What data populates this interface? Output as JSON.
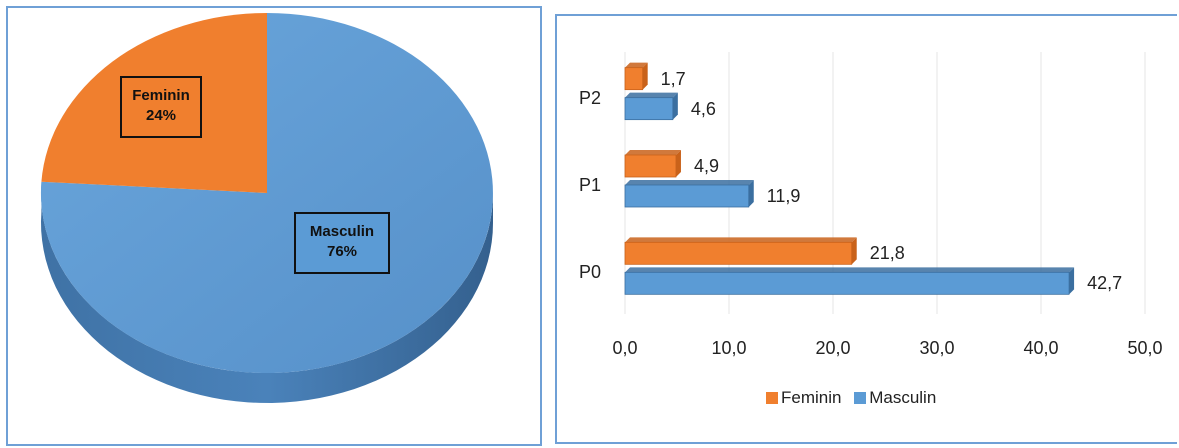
{
  "colors": {
    "feminin": "#f07f2e",
    "feminin_dark": "#c9621a",
    "masculin": "#5b9bd5",
    "masculin_dark": "#3b6fa0",
    "panel_border": "#6fa0d6"
  },
  "chart_data": [
    {
      "type": "pie",
      "slices": [
        {
          "name": "Feminin",
          "value": 24,
          "label_name": "Feminin",
          "label_pct": "24%"
        },
        {
          "name": "Masculin",
          "value": 76,
          "label_name": "Masculin",
          "label_pct": "76%"
        }
      ],
      "style": "3d"
    },
    {
      "type": "bar",
      "orientation": "horizontal",
      "categories": [
        "P2",
        "P1",
        "P0"
      ],
      "series": [
        {
          "name": "Feminin",
          "values": [
            1.7,
            4.9,
            21.8
          ],
          "labels": [
            "1,7",
            "4,9",
            "21,8"
          ]
        },
        {
          "name": "Masculin",
          "values": [
            4.6,
            11.9,
            42.7
          ],
          "labels": [
            "4,6",
            "11,9",
            "42,7"
          ]
        }
      ],
      "xlim": [
        0,
        50
      ],
      "xticks": [
        0,
        10,
        20,
        30,
        40,
        50
      ],
      "xtick_labels": [
        "0,0",
        "10,0",
        "20,0",
        "30,0",
        "40,0",
        "50,0"
      ],
      "grid": true,
      "legend": {
        "position": "bottom",
        "items": [
          "Feminin",
          "Masculin"
        ]
      }
    }
  ]
}
